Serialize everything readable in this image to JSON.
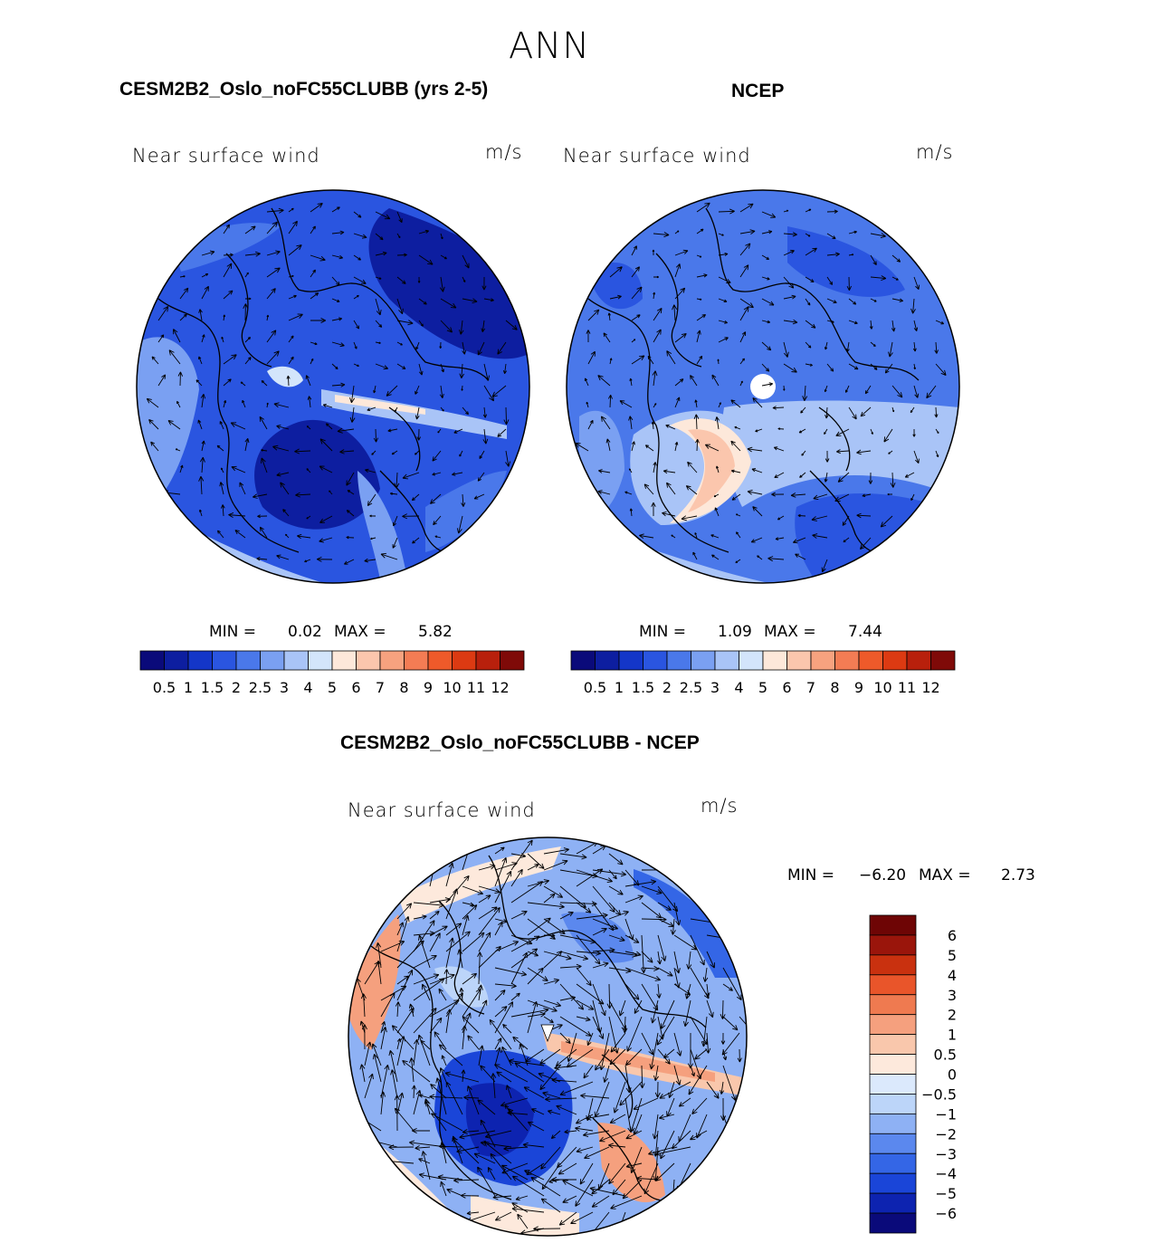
{
  "figure": {
    "title": "ANN"
  },
  "colors": {
    "model_obs_palette": [
      "#0a0a7a",
      "#0d1ea0",
      "#1436c8",
      "#2a55e0",
      "#4a78ea",
      "#7aa0f2",
      "#a9c4f7",
      "#d3e5fb",
      "#fde8da",
      "#fbc6ad",
      "#f7a27f",
      "#f37c54",
      "#ee5a2a",
      "#dc3a12",
      "#b8200c",
      "#7f0a08"
    ],
    "diff_palette": [
      "#0a0a7a",
      "#0d23b0",
      "#1a45d8",
      "#3466e6",
      "#5b88ee",
      "#8eb1f4",
      "#bcd5f9",
      "#dbe9fc",
      "#fde9dc",
      "#f9c7ac",
      "#f5a07e",
      "#ef7a50",
      "#e9552a",
      "#c9310f",
      "#9a150b",
      "#6e0505"
    ],
    "land_outline": "#000000"
  },
  "chart_data": [
    {
      "type": "polar_contour_vector",
      "panel": "model",
      "title": "CESM2B2_Oslo_noFC55CLUBB (yrs 2-5)",
      "variable": "Near surface wind",
      "units": "m/s",
      "min_label": "MIN =",
      "min": "0.02",
      "max_label": "MAX =",
      "max": "5.82",
      "colorbar_levels": [
        "0.5",
        "1",
        "1.5",
        "2",
        "2.5",
        "3",
        "4",
        "5",
        "6",
        "7",
        "8",
        "9",
        "10",
        "11",
        "12"
      ]
    },
    {
      "type": "polar_contour_vector",
      "panel": "obs",
      "title": "NCEP",
      "variable": "Near surface wind",
      "units": "m/s",
      "min_label": "MIN =",
      "min": "1.09",
      "max_label": "MAX =",
      "max": "7.44",
      "colorbar_levels": [
        "0.5",
        "1",
        "1.5",
        "2",
        "2.5",
        "3",
        "4",
        "5",
        "6",
        "7",
        "8",
        "9",
        "10",
        "11",
        "12"
      ]
    },
    {
      "type": "polar_contour_vector",
      "panel": "diff",
      "title": "CESM2B2_Oslo_noFC55CLUBB - NCEP",
      "variable": "Near surface wind",
      "units": "m/s",
      "min_label": "MIN =",
      "min": "−6.20",
      "max_label": "MAX =",
      "max": "2.73",
      "colorbar_levels": [
        "6",
        "5",
        "4",
        "3",
        "2",
        "1",
        "0.5",
        "0",
        "−0.5",
        "−1",
        "−2",
        "−3",
        "−4",
        "−5",
        "−6"
      ]
    }
  ]
}
